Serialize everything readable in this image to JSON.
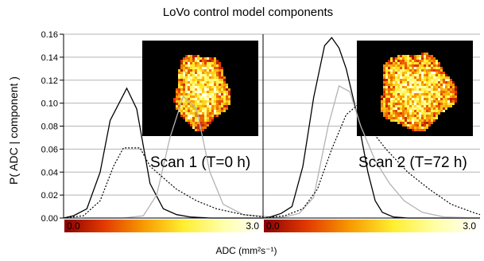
{
  "chart_data": {
    "type": "line",
    "title": "LoVo control model components",
    "ylabel": "P( ADC | component )",
    "xlabel": "ADC (mm²s⁻¹)",
    "ylim": [
      0,
      0.16
    ],
    "yticks": [
      "0.00",
      "0.02",
      "0.04",
      "0.06",
      "0.08",
      "0.10",
      "0.12",
      "0.14",
      "0.16"
    ],
    "xlim": [
      0,
      3.0
    ],
    "grid": true,
    "colorbar": {
      "min_label": "0.0",
      "max_label": "3.0",
      "colors": [
        "#8b0000",
        "#e23a00",
        "#f79a00",
        "#ffee30",
        "#ffffa8",
        "#ffffff"
      ]
    },
    "panels": [
      {
        "label": "Scan 1 (T=0 h)",
        "series": [
          {
            "color": "#000000",
            "style": "solid",
            "x": [
              0.0,
              0.15,
              0.35,
              0.55,
              0.7,
              0.95,
              1.1,
              1.3,
              1.5,
              1.7,
              1.9,
              2.2,
              2.6,
              3.0
            ],
            "y": [
              0.0,
              0.002,
              0.008,
              0.04,
              0.085,
              0.113,
              0.095,
              0.03,
              0.008,
              0.003,
              0.001,
              0.0,
              0.0,
              0.0
            ]
          },
          {
            "color": "#b3b3b3",
            "style": "solid",
            "x": [
              0.0,
              0.6,
              0.9,
              1.1,
              1.3,
              1.5,
              1.7,
              1.9,
              2.1,
              2.4,
              3.0
            ],
            "y": [
              0.0,
              0.0,
              0.002,
              0.02,
              0.07,
              0.106,
              0.095,
              0.04,
              0.012,
              0.003,
              0.0
            ],
            "x_shift": 0.3
          },
          {
            "color": "#000000",
            "style": "dotted",
            "x": [
              0.0,
              0.3,
              0.55,
              0.75,
              0.9,
              1.15,
              1.3,
              1.5,
              1.7,
              2.0,
              2.3,
              2.7,
              3.0
            ],
            "y": [
              0.0,
              0.002,
              0.015,
              0.045,
              0.061,
              0.061,
              0.045,
              0.035,
              0.025,
              0.015,
              0.008,
              0.003,
              0.001
            ]
          }
        ],
        "inset": {
          "seed": 11
        }
      },
      {
        "label": "Scan 2 (T=72 h)",
        "series": [
          {
            "color": "#000000",
            "style": "solid",
            "x": [
              0.0,
              0.1,
              0.25,
              0.4,
              0.55,
              0.7,
              0.85,
              0.95,
              1.05,
              1.15,
              1.3,
              1.45,
              1.55,
              1.65,
              1.8,
              2.0,
              3.0
            ],
            "y": [
              0.0,
              0.001,
              0.004,
              0.01,
              0.045,
              0.105,
              0.15,
              0.157,
              0.148,
              0.13,
              0.09,
              0.04,
              0.015,
              0.005,
              0.001,
              0.0,
              0.0
            ]
          },
          {
            "color": "#b3b3b3",
            "style": "solid",
            "x": [
              0.0,
              0.3,
              0.5,
              0.7,
              0.9,
              1.05,
              1.2,
              1.35,
              1.55,
              1.75,
              1.95,
              2.2,
              2.5,
              3.0
            ],
            "y": [
              0.0,
              0.001,
              0.004,
              0.018,
              0.08,
              0.115,
              0.11,
              0.08,
              0.05,
              0.03,
              0.015,
              0.005,
              0.001,
              0.0
            ]
          },
          {
            "color": "#000000",
            "style": "dotted",
            "x": [
              0.0,
              0.3,
              0.55,
              0.75,
              0.95,
              1.15,
              1.3,
              1.45,
              1.7,
              2.0,
              2.3,
              2.6,
              2.9,
              3.0
            ],
            "y": [
              0.0,
              0.002,
              0.008,
              0.025,
              0.06,
              0.09,
              0.098,
              0.08,
              0.06,
              0.04,
              0.025,
              0.012,
              0.005,
              0.003
            ]
          }
        ],
        "inset": {
          "seed": 29
        }
      }
    ]
  }
}
